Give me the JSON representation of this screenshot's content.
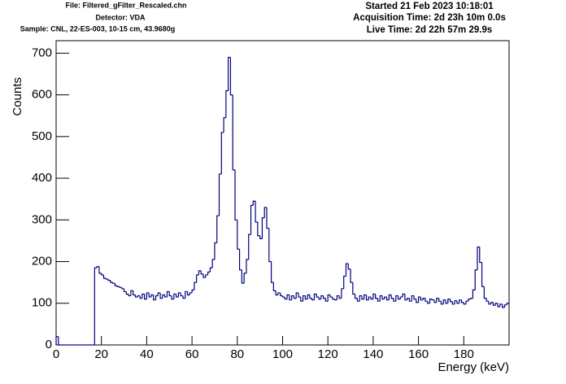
{
  "chart_data": {
    "type": "histogram",
    "header_left": [
      "File: Filtered_gFilter_Rescaled.chn",
      "Detector: VDA",
      "Sample: CNL, 22-ES-003, 10-15 cm, 43.9680g"
    ],
    "header_right": [
      "Started 21 Feb 2023 10:18:01",
      "Acquisition Time: 2d 23h 10m 0.0s",
      "Live Time: 2d 22h 57m 29.9s"
    ],
    "x_label": "Energy (keV)",
    "y_label": "Counts",
    "color": "#000080",
    "xlim": [
      0,
      200
    ],
    "ylim": [
      0,
      730
    ],
    "xticks": [
      0,
      20,
      40,
      60,
      80,
      100,
      120,
      140,
      160,
      180
    ],
    "yticks": [
      0,
      100,
      200,
      300,
      400,
      500,
      600,
      700
    ],
    "bins": [
      0,
      1,
      2,
      3,
      4,
      5,
      6,
      7,
      8,
      9,
      10,
      11,
      12,
      13,
      14,
      15,
      16,
      17,
      18,
      19,
      20,
      21,
      22,
      23,
      24,
      25,
      26,
      27,
      28,
      29,
      30,
      31,
      32,
      33,
      34,
      35,
      36,
      37,
      38,
      39,
      40,
      41,
      42,
      43,
      44,
      45,
      46,
      47,
      48,
      49,
      50,
      51,
      52,
      53,
      54,
      55,
      56,
      57,
      58,
      59,
      60,
      61,
      62,
      63,
      64,
      65,
      66,
      67,
      68,
      69,
      70,
      71,
      72,
      73,
      74,
      75,
      76,
      77,
      78,
      79,
      80,
      81,
      82,
      83,
      84,
      85,
      86,
      87,
      88,
      89,
      90,
      91,
      92,
      93,
      94,
      95,
      96,
      97,
      98,
      99,
      100,
      101,
      102,
      103,
      104,
      105,
      106,
      107,
      108,
      109,
      110,
      111,
      112,
      113,
      114,
      115,
      116,
      117,
      118,
      119,
      120,
      121,
      122,
      123,
      124,
      125,
      126,
      127,
      128,
      129,
      130,
      131,
      132,
      133,
      134,
      135,
      136,
      137,
      138,
      139,
      140,
      141,
      142,
      143,
      144,
      145,
      146,
      147,
      148,
      149,
      150,
      151,
      152,
      153,
      154,
      155,
      156,
      157,
      158,
      159,
      160,
      161,
      162,
      163,
      164,
      165,
      166,
      167,
      168,
      169,
      170,
      171,
      172,
      173,
      174,
      175,
      176,
      177,
      178,
      179,
      180,
      181,
      182,
      183,
      184,
      185,
      186,
      187,
      188,
      189,
      190,
      191,
      192,
      193,
      194,
      195,
      196,
      197,
      198,
      199,
      200
    ],
    "counts": [
      20,
      0,
      0,
      0,
      0,
      0,
      0,
      0,
      0,
      0,
      0,
      0,
      0,
      0,
      0,
      0,
      0,
      185,
      188,
      172,
      168,
      160,
      158,
      155,
      150,
      148,
      142,
      140,
      138,
      135,
      128,
      122,
      118,
      130,
      120,
      115,
      118,
      112,
      122,
      110,
      125,
      115,
      120,
      108,
      118,
      125,
      112,
      120,
      115,
      128,
      118,
      110,
      122,
      115,
      125,
      118,
      112,
      128,
      120,
      125,
      132,
      150,
      168,
      178,
      170,
      162,
      168,
      175,
      185,
      205,
      245,
      310,
      410,
      510,
      545,
      610,
      690,
      600,
      420,
      300,
      230,
      180,
      148,
      172,
      205,
      265,
      335,
      345,
      295,
      262,
      255,
      305,
      330,
      280,
      200,
      150,
      130,
      120,
      125,
      118,
      115,
      110,
      120,
      108,
      118,
      112,
      125,
      115,
      105,
      118,
      110,
      120,
      112,
      108,
      122,
      115,
      110,
      118,
      112,
      105,
      120,
      115,
      110,
      108,
      118,
      112,
      135,
      165,
      195,
      182,
      150,
      122,
      112,
      105,
      118,
      110,
      120,
      108,
      115,
      110,
      122,
      112,
      105,
      118,
      110,
      115,
      108,
      120,
      112,
      105,
      118,
      110,
      115,
      122,
      108,
      112,
      105,
      118,
      110,
      102,
      115,
      108,
      112,
      105,
      100,
      110,
      108,
      102,
      112,
      105,
      98,
      108,
      100,
      110,
      104,
      98,
      106,
      100,
      108,
      102,
      98,
      105,
      110,
      112,
      132,
      180,
      235,
      198,
      140,
      112,
      105,
      98,
      102,
      95,
      100,
      92,
      98,
      90,
      96,
      100
    ]
  }
}
